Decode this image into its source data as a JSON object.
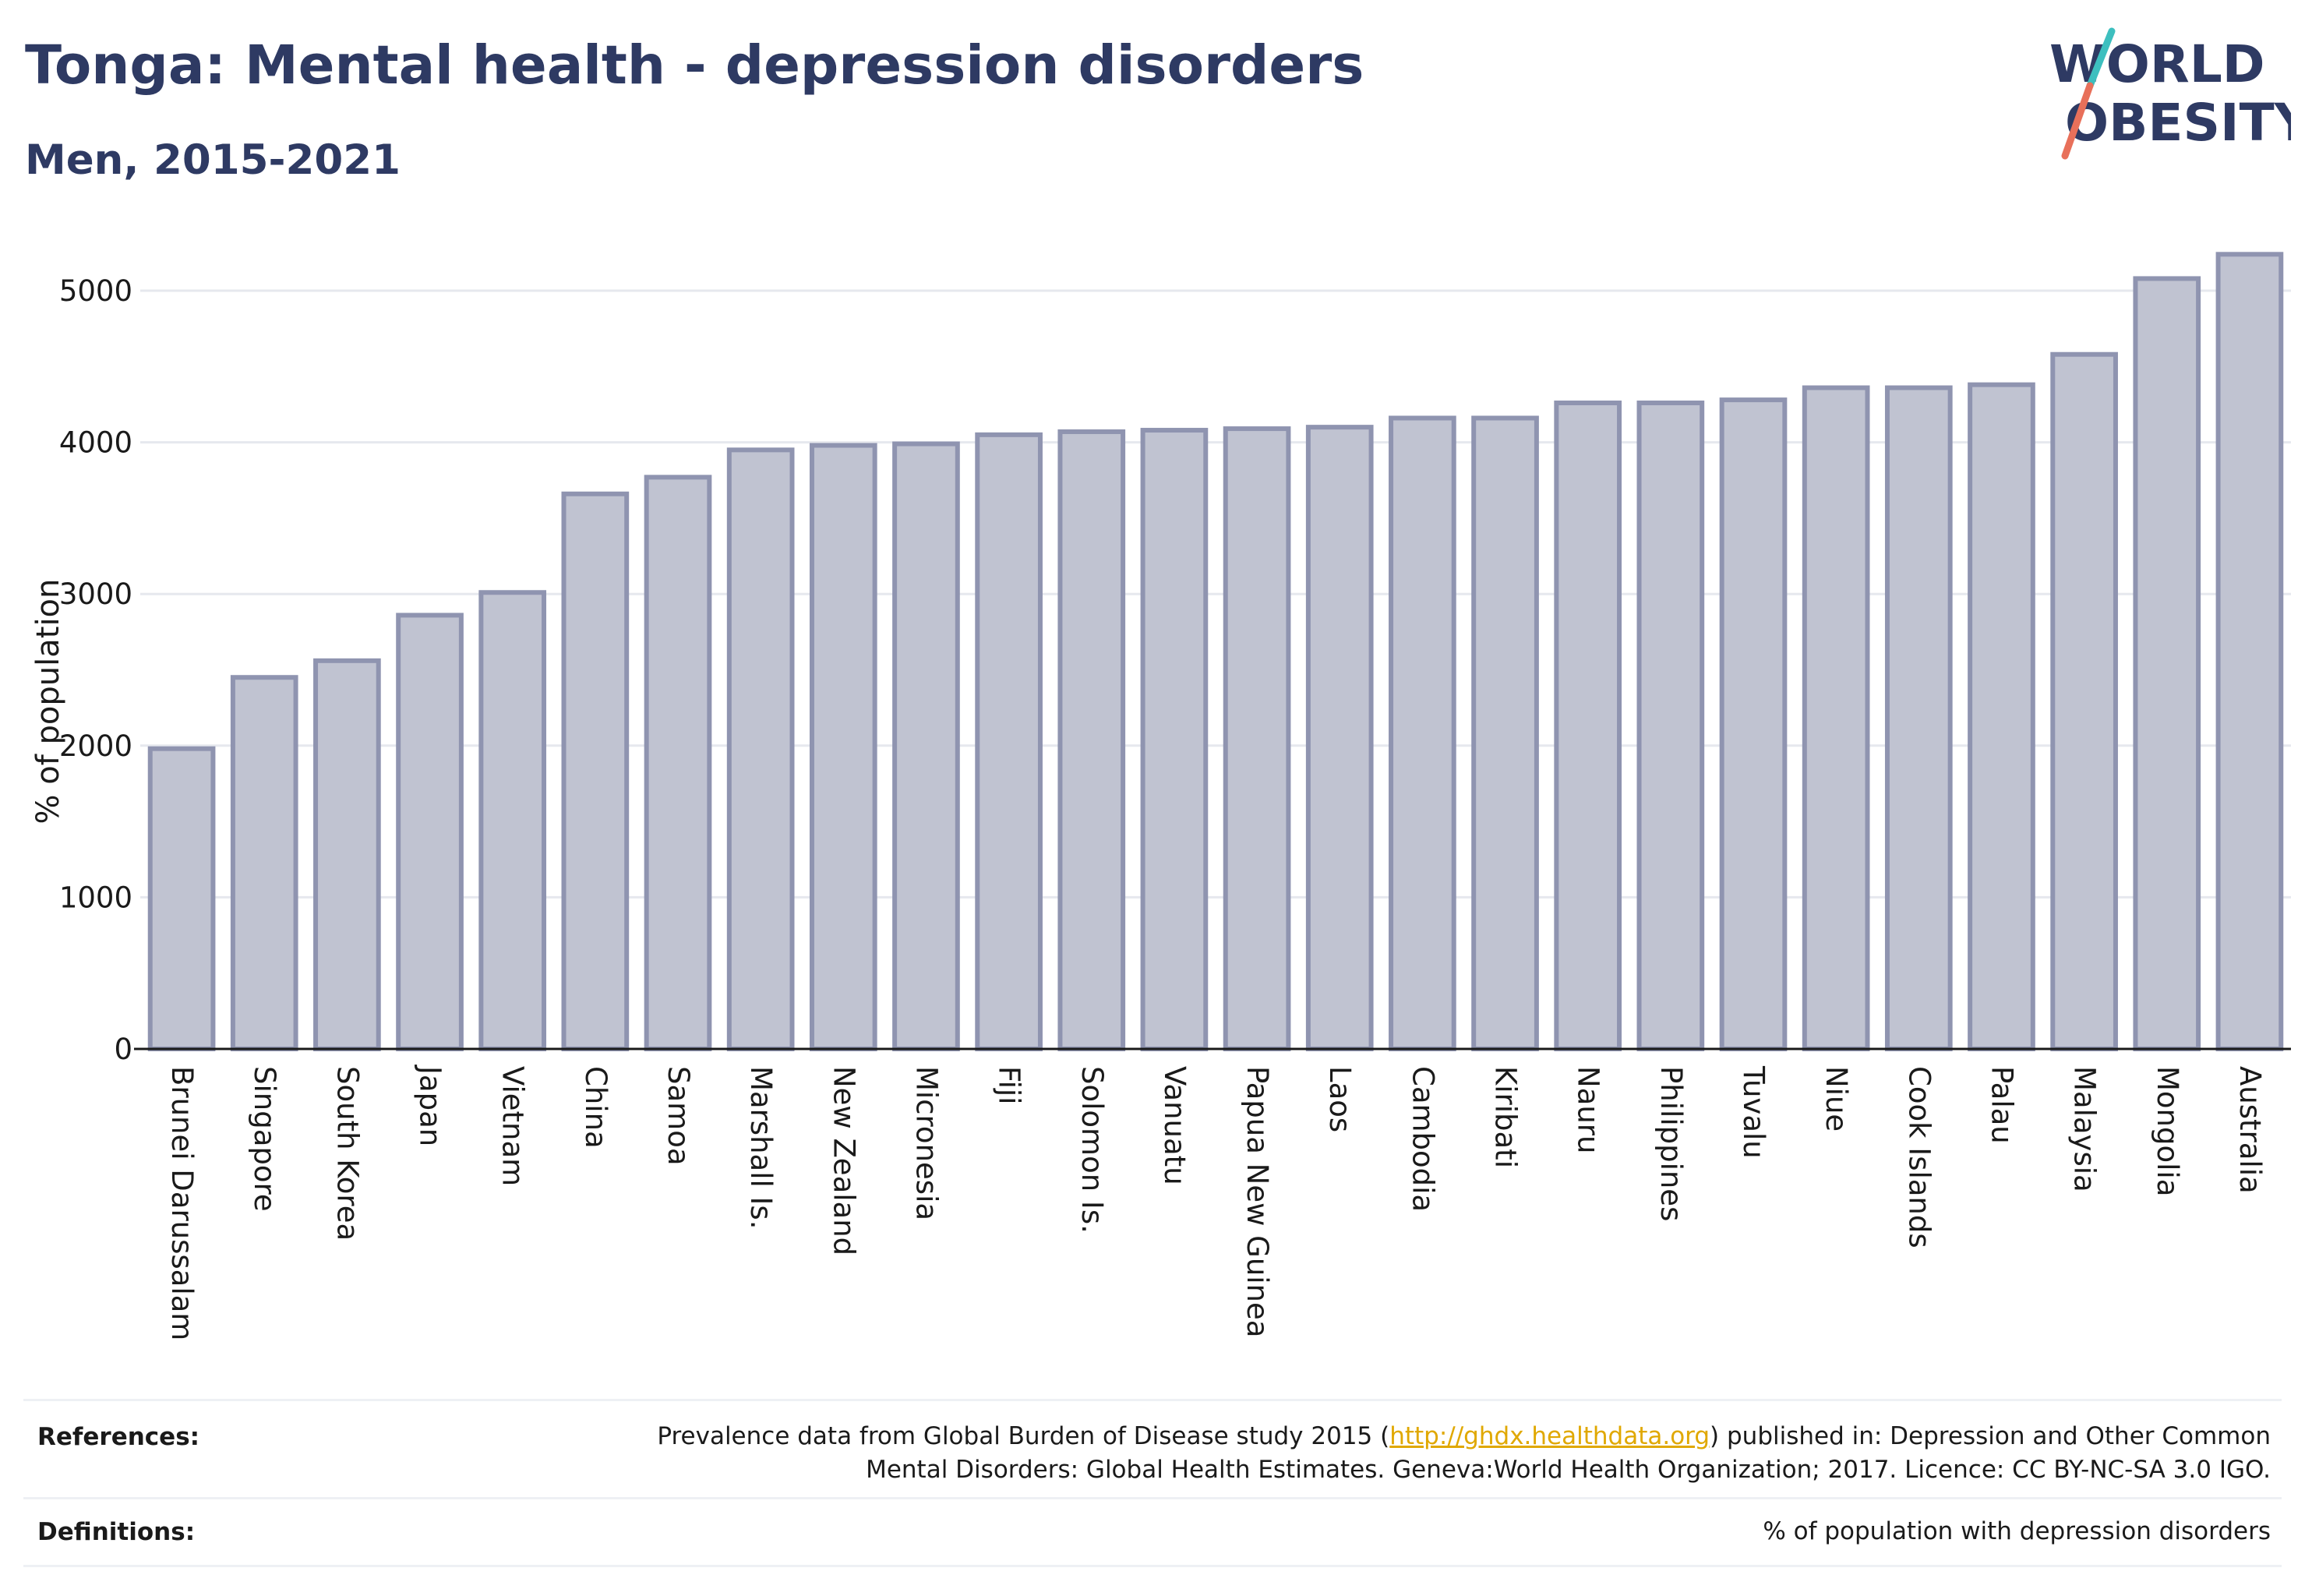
{
  "header": {
    "title": "Tonga: Mental health - depression disorders",
    "subtitle": "Men, 2015-2021"
  },
  "logo": {
    "line1": "WORLD",
    "line2": "OBESITY"
  },
  "chart_data": {
    "type": "bar",
    "ylabel": "% of population",
    "ylim": [
      0,
      5200
    ],
    "yticks": [
      0,
      1000,
      2000,
      3000,
      4000,
      5000
    ],
    "grid": true,
    "categories": [
      "Brunei Darussalam",
      "Singapore",
      "South Korea",
      "Japan",
      "Vietnam",
      "China",
      "Samoa",
      "Marshall Is.",
      "New Zealand",
      "Micronesia",
      "Fiji",
      "Solomon Is.",
      "Vanuatu",
      "Papua New Guinea",
      "Laos",
      "Cambodia",
      "Kiribati",
      "Nauru",
      "Philippines",
      "Tuvalu",
      "Niue",
      "Cook Islands",
      "Palau",
      "Malaysia",
      "Mongolia",
      "Australia"
    ],
    "values": [
      1980,
      2450,
      2560,
      2860,
      3010,
      3660,
      3770,
      3950,
      3980,
      3990,
      4050,
      4070,
      4080,
      4090,
      4100,
      4160,
      4160,
      4260,
      4260,
      4280,
      4360,
      4360,
      4380,
      4580,
      5080,
      5240
    ],
    "bar_color": "#8f94b0"
  },
  "footer": {
    "references_label": "References:",
    "references_pre": "Prevalence data from Global Burden of Disease study 2015 (",
    "references_link": "http://ghdx.healthdata.org",
    "references_post": ") published in: Depression and Other Common Mental Disorders: Global Health Estimates. Geneva:World Health Organization; 2017. Licence: CC BY-NC-SA 3.0 IGO.",
    "definitions_label": "Definitions:",
    "definitions_text": "% of population with depression disorders"
  }
}
